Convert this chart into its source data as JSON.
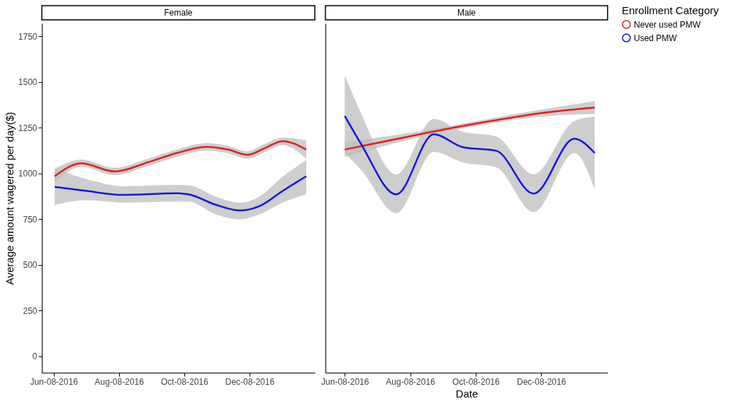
{
  "chart_data": [
    {
      "type": "line",
      "title": "Female",
      "ylabel": "Average amount wagered per day($)",
      "legend": "right",
      "legend_title": "Enrollment Category",
      "grid": false,
      "xlim": [
        "2016-05-28",
        "2017-02-07"
      ],
      "ylim": [
        -90,
        1820
      ],
      "yticks": [
        0,
        250,
        500,
        750,
        1000,
        1250,
        1500,
        1750
      ],
      "xticks": [
        {
          "value": "2016-06-08",
          "label": "Jun-08-2016"
        },
        {
          "value": "2016-08-08",
          "label": "Aug-08-2016"
        },
        {
          "value": "2016-10-08",
          "label": "Oct-08-2016"
        },
        {
          "value": "2016-12-08",
          "label": "Dec-08-2016"
        }
      ],
      "series": [
        {
          "name": "Never used PMW",
          "color": "#e0201f",
          "x": [
            "2016-06-09",
            "2016-07-04",
            "2016-08-04",
            "2016-09-04",
            "2016-10-01",
            "2016-10-29",
            "2016-11-18",
            "2016-12-06",
            "2016-12-22",
            "2017-01-08",
            "2017-01-30"
          ],
          "values": [
            984,
            1055,
            1010,
            1060,
            1111,
            1145,
            1130,
            1101,
            1137,
            1176,
            1130
          ],
          "lower": [
            950,
            1035,
            990,
            1040,
            1090,
            1125,
            1110,
            1080,
            1115,
            1155,
            1080
          ],
          "upper": [
            1025,
            1075,
            1030,
            1080,
            1130,
            1165,
            1150,
            1120,
            1160,
            1195,
            1180
          ]
        },
        {
          "name": "Used PMW",
          "color": "#1414e0",
          "x": [
            "2016-06-09",
            "2016-07-09",
            "2016-08-11",
            "2016-10-01",
            "2016-10-12",
            "2016-11-07",
            "2016-11-29",
            "2016-12-17",
            "2017-01-08",
            "2017-01-30"
          ],
          "values": [
            926,
            904,
            882,
            891,
            885,
            827,
            797,
            820,
            904,
            984
          ],
          "lower": [
            827,
            853,
            840,
            846,
            846,
            775,
            749,
            775,
            840,
            885
          ],
          "upper": [
            1027,
            969,
            930,
            937,
            935,
            872,
            840,
            872,
            982,
            1072
          ]
        }
      ]
    },
    {
      "type": "line",
      "title": "Male",
      "xlabel": "Date",
      "grid": false,
      "tick_labels": "x",
      "xlim": [
        "2016-05-21",
        "2017-02-08"
      ],
      "ylim": [
        -90,
        1820
      ],
      "yticks": [
        0,
        250,
        500,
        750,
        1000,
        1250,
        1500,
        1750
      ],
      "xticks": [
        {
          "value": "2016-06-08",
          "label": "Jun-08-2016"
        },
        {
          "value": "2016-08-08",
          "label": "Aug-08-2016"
        },
        {
          "value": "2016-10-08",
          "label": "Oct-08-2016"
        },
        {
          "value": "2016-12-08",
          "label": "Dec-08-2016"
        }
      ],
      "series": [
        {
          "name": "Never used PMW",
          "color": "#e0201f",
          "x": [
            "2016-06-08",
            "2016-08-17",
            "2016-10-22",
            "2016-12-06",
            "2017-01-27"
          ],
          "values": [
            1130,
            1214,
            1286,
            1328,
            1360
          ],
          "lower": [
            1090,
            1198,
            1272,
            1310,
            1325
          ],
          "upper": [
            1170,
            1230,
            1300,
            1346,
            1395
          ]
        },
        {
          "name": "Used PMW",
          "color": "#1414e0",
          "x": [
            "2016-06-08",
            "2016-06-23",
            "2016-07-26",
            "2016-08-30",
            "2016-09-26",
            "2016-10-27",
            "2016-12-01",
            "2017-01-08",
            "2017-01-27"
          ],
          "values": [
            1314,
            1163,
            885,
            1214,
            1143,
            1124,
            889,
            1189,
            1111
          ],
          "lower": [
            1111,
            1021,
            782,
            1118,
            1060,
            1034,
            788,
            1111,
            911
          ],
          "upper": [
            1537,
            1331,
            995,
            1298,
            1227,
            1202,
            995,
            1286,
            1311
          ]
        }
      ]
    }
  ]
}
